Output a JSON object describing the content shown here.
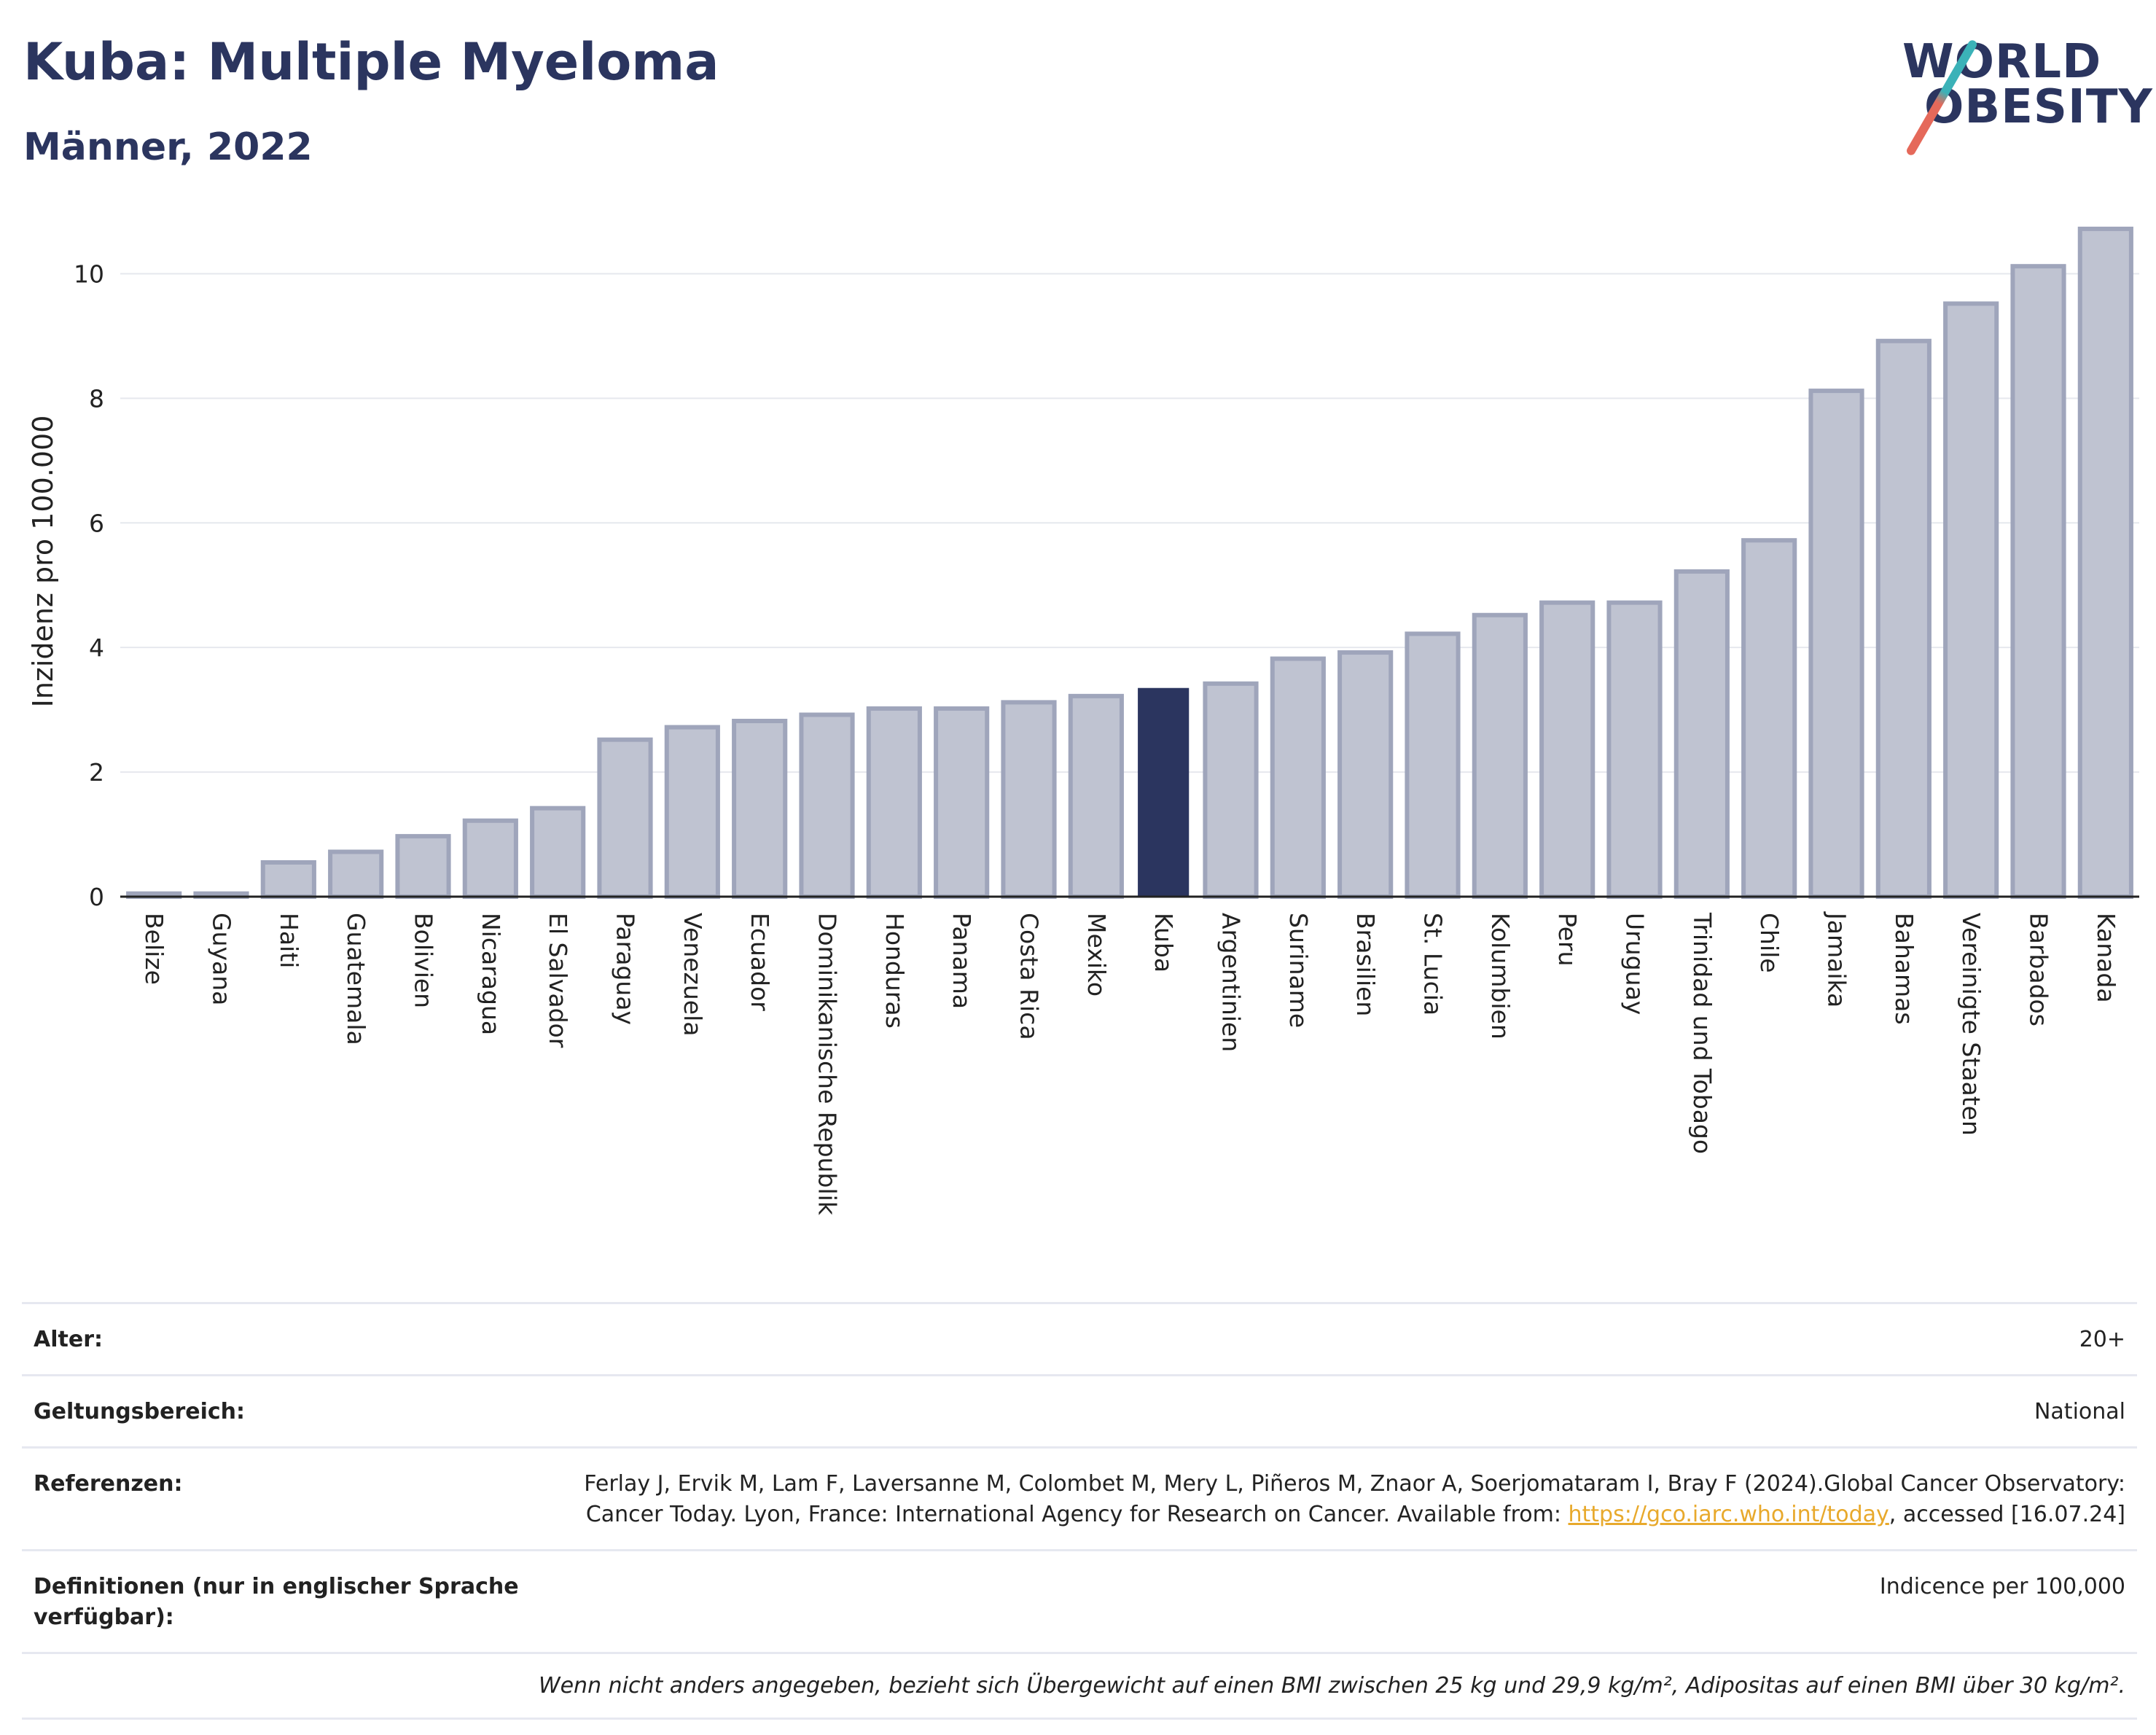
{
  "header": {
    "title": "Kuba: Multiple Myeloma",
    "subtitle": "Männer, 2022"
  },
  "logo": {
    "line1": "WORLD",
    "line2": "OBESITY",
    "colors": {
      "navy": "#2b355f",
      "teal": "#3bb2b8",
      "coral": "#e5695a"
    }
  },
  "chart_data": {
    "type": "bar",
    "ylabel": "Inzidenz pro 100.000",
    "xlabel": "",
    "ylim": [
      0,
      11
    ],
    "yticks": [
      0,
      2,
      4,
      6,
      8,
      10
    ],
    "grid": true,
    "highlight": "Kuba",
    "colors": {
      "bar": "#bfc3d1",
      "bar_border": "#9fa5bb",
      "highlight": "#2b355f"
    },
    "categories": [
      "Belize",
      "Guyana",
      "Haiti",
      "Guatemala",
      "Bolivien",
      "Nicaragua",
      "El Salvador",
      "Paraguay",
      "Venezuela",
      "Ecuador",
      "Dominikanische Republik",
      "Honduras",
      "Panama",
      "Costa Rica",
      "Mexiko",
      "Kuba",
      "Argentinien",
      "Suriname",
      "Brasilien",
      "St. Lucia",
      "Kolumbien",
      "Peru",
      "Uruguay",
      "Trinidad und Tobago",
      "Chile",
      "Jamaika",
      "Bahamas",
      "Vereinigte Staaten",
      "Barbados",
      "Kanada"
    ],
    "values": [
      0.05,
      0.05,
      0.55,
      0.72,
      0.97,
      1.22,
      1.42,
      2.52,
      2.72,
      2.82,
      2.92,
      3.02,
      3.02,
      3.12,
      3.22,
      3.35,
      3.42,
      3.82,
      3.92,
      4.22,
      4.52,
      4.72,
      4.72,
      5.22,
      5.72,
      8.12,
      8.92,
      9.52,
      10.12,
      10.72
    ]
  },
  "info": {
    "rows": [
      {
        "label": "Alter:",
        "value": "20+"
      },
      {
        "label": "Geltungsbereich:",
        "value": "National"
      },
      {
        "label": "Referenzen:",
        "value_before": "Ferlay J, Ervik M, Lam F, Laversanne M, Colombet M, Mery L, Piñeros M, Znaor A, Soerjomataram I, Bray F (2024).Global Cancer Observatory: Cancer Today. Lyon, France: International Agency for Research on Cancer. Available from: ",
        "link": "https://gco.iarc.who.int/today",
        "value_after": ", accessed [16.07.24]"
      },
      {
        "label": "Definitionen (nur in englischer Sprache verfügbar):",
        "value": "Indicence per 100,000"
      }
    ],
    "footnote": "Wenn nicht anders angegeben, bezieht sich Übergewicht auf einen BMI zwischen 25 kg und 29,9 kg/m², Adipositas auf einen BMI über 30 kg/m²."
  }
}
